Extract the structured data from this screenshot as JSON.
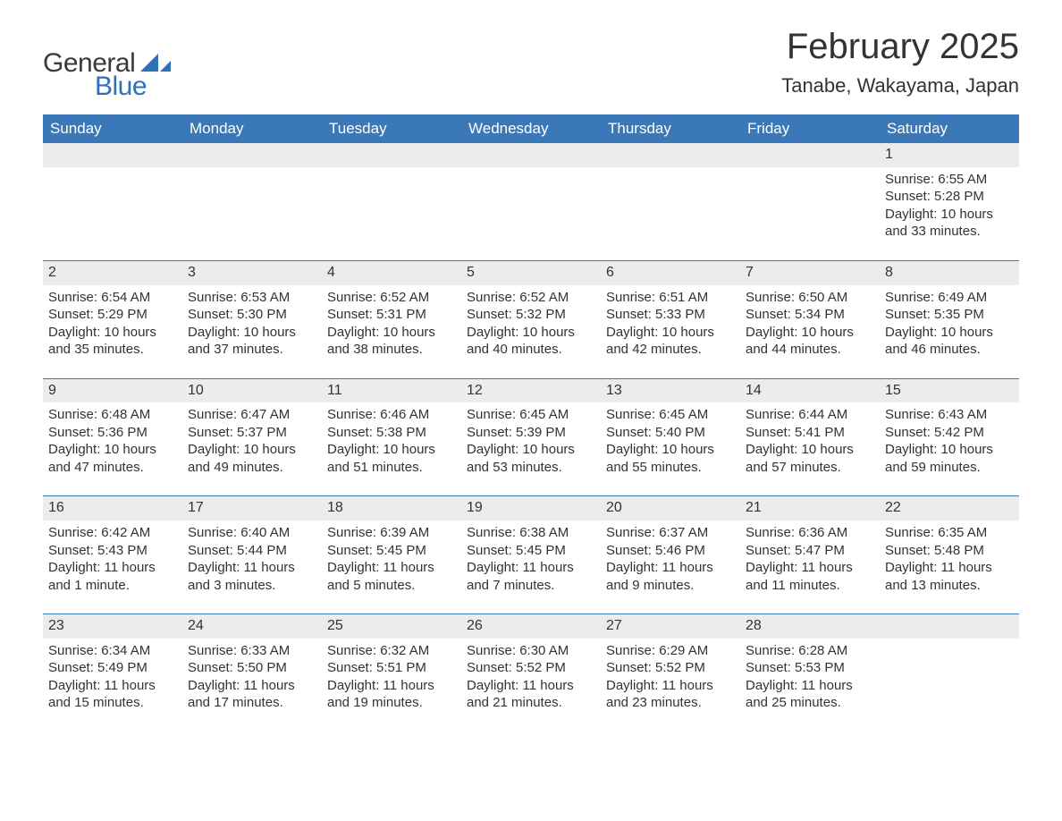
{
  "logo": {
    "text_general": "General",
    "text_blue": "Blue",
    "flag_color": "#2d72b8"
  },
  "header": {
    "title": "February 2025",
    "subtitle": "Tanabe, Wakayama, Japan"
  },
  "colors": {
    "header_bg": "#3b78b8",
    "header_text": "#ffffff",
    "daynum_bg": "#ececec",
    "week_border": "#3b78b8",
    "body_text": "#333333",
    "background": "#ffffff"
  },
  "typography": {
    "title_fontsize": 40,
    "subtitle_fontsize": 22,
    "dayheader_fontsize": 17,
    "body_fontsize": 15,
    "logo_fontsize": 30,
    "font_family": "Arial"
  },
  "day_names": [
    "Sunday",
    "Monday",
    "Tuesday",
    "Wednesday",
    "Thursday",
    "Friday",
    "Saturday"
  ],
  "weeks": [
    [
      null,
      null,
      null,
      null,
      null,
      null,
      {
        "n": "1",
        "sunrise": "Sunrise: 6:55 AM",
        "sunset": "Sunset: 5:28 PM",
        "daylight": "Daylight: 10 hours and 33 minutes."
      }
    ],
    [
      {
        "n": "2",
        "sunrise": "Sunrise: 6:54 AM",
        "sunset": "Sunset: 5:29 PM",
        "daylight": "Daylight: 10 hours and 35 minutes."
      },
      {
        "n": "3",
        "sunrise": "Sunrise: 6:53 AM",
        "sunset": "Sunset: 5:30 PM",
        "daylight": "Daylight: 10 hours and 37 minutes."
      },
      {
        "n": "4",
        "sunrise": "Sunrise: 6:52 AM",
        "sunset": "Sunset: 5:31 PM",
        "daylight": "Daylight: 10 hours and 38 minutes."
      },
      {
        "n": "5",
        "sunrise": "Sunrise: 6:52 AM",
        "sunset": "Sunset: 5:32 PM",
        "daylight": "Daylight: 10 hours and 40 minutes."
      },
      {
        "n": "6",
        "sunrise": "Sunrise: 6:51 AM",
        "sunset": "Sunset: 5:33 PM",
        "daylight": "Daylight: 10 hours and 42 minutes."
      },
      {
        "n": "7",
        "sunrise": "Sunrise: 6:50 AM",
        "sunset": "Sunset: 5:34 PM",
        "daylight": "Daylight: 10 hours and 44 minutes."
      },
      {
        "n": "8",
        "sunrise": "Sunrise: 6:49 AM",
        "sunset": "Sunset: 5:35 PM",
        "daylight": "Daylight: 10 hours and 46 minutes."
      }
    ],
    [
      {
        "n": "9",
        "sunrise": "Sunrise: 6:48 AM",
        "sunset": "Sunset: 5:36 PM",
        "daylight": "Daylight: 10 hours and 47 minutes."
      },
      {
        "n": "10",
        "sunrise": "Sunrise: 6:47 AM",
        "sunset": "Sunset: 5:37 PM",
        "daylight": "Daylight: 10 hours and 49 minutes."
      },
      {
        "n": "11",
        "sunrise": "Sunrise: 6:46 AM",
        "sunset": "Sunset: 5:38 PM",
        "daylight": "Daylight: 10 hours and 51 minutes."
      },
      {
        "n": "12",
        "sunrise": "Sunrise: 6:45 AM",
        "sunset": "Sunset: 5:39 PM",
        "daylight": "Daylight: 10 hours and 53 minutes."
      },
      {
        "n": "13",
        "sunrise": "Sunrise: 6:45 AM",
        "sunset": "Sunset: 5:40 PM",
        "daylight": "Daylight: 10 hours and 55 minutes."
      },
      {
        "n": "14",
        "sunrise": "Sunrise: 6:44 AM",
        "sunset": "Sunset: 5:41 PM",
        "daylight": "Daylight: 10 hours and 57 minutes."
      },
      {
        "n": "15",
        "sunrise": "Sunrise: 6:43 AM",
        "sunset": "Sunset: 5:42 PM",
        "daylight": "Daylight: 10 hours and 59 minutes."
      }
    ],
    [
      {
        "n": "16",
        "sunrise": "Sunrise: 6:42 AM",
        "sunset": "Sunset: 5:43 PM",
        "daylight": "Daylight: 11 hours and 1 minute."
      },
      {
        "n": "17",
        "sunrise": "Sunrise: 6:40 AM",
        "sunset": "Sunset: 5:44 PM",
        "daylight": "Daylight: 11 hours and 3 minutes."
      },
      {
        "n": "18",
        "sunrise": "Sunrise: 6:39 AM",
        "sunset": "Sunset: 5:45 PM",
        "daylight": "Daylight: 11 hours and 5 minutes."
      },
      {
        "n": "19",
        "sunrise": "Sunrise: 6:38 AM",
        "sunset": "Sunset: 5:45 PM",
        "daylight": "Daylight: 11 hours and 7 minutes."
      },
      {
        "n": "20",
        "sunrise": "Sunrise: 6:37 AM",
        "sunset": "Sunset: 5:46 PM",
        "daylight": "Daylight: 11 hours and 9 minutes."
      },
      {
        "n": "21",
        "sunrise": "Sunrise: 6:36 AM",
        "sunset": "Sunset: 5:47 PM",
        "daylight": "Daylight: 11 hours and 11 minutes."
      },
      {
        "n": "22",
        "sunrise": "Sunrise: 6:35 AM",
        "sunset": "Sunset: 5:48 PM",
        "daylight": "Daylight: 11 hours and 13 minutes."
      }
    ],
    [
      {
        "n": "23",
        "sunrise": "Sunrise: 6:34 AM",
        "sunset": "Sunset: 5:49 PM",
        "daylight": "Daylight: 11 hours and 15 minutes."
      },
      {
        "n": "24",
        "sunrise": "Sunrise: 6:33 AM",
        "sunset": "Sunset: 5:50 PM",
        "daylight": "Daylight: 11 hours and 17 minutes."
      },
      {
        "n": "25",
        "sunrise": "Sunrise: 6:32 AM",
        "sunset": "Sunset: 5:51 PM",
        "daylight": "Daylight: 11 hours and 19 minutes."
      },
      {
        "n": "26",
        "sunrise": "Sunrise: 6:30 AM",
        "sunset": "Sunset: 5:52 PM",
        "daylight": "Daylight: 11 hours and 21 minutes."
      },
      {
        "n": "27",
        "sunrise": "Sunrise: 6:29 AM",
        "sunset": "Sunset: 5:52 PM",
        "daylight": "Daylight: 11 hours and 23 minutes."
      },
      {
        "n": "28",
        "sunrise": "Sunrise: 6:28 AM",
        "sunset": "Sunset: 5:53 PM",
        "daylight": "Daylight: 11 hours and 25 minutes."
      },
      null
    ]
  ]
}
